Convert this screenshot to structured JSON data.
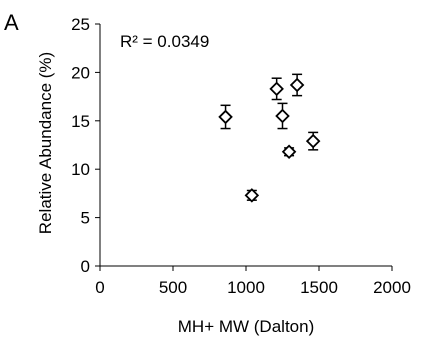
{
  "panel_label": "A",
  "colors": {
    "mark": "#000000",
    "background": "#ffffff"
  },
  "chart_data": {
    "type": "scatter",
    "title": "",
    "xlabel": "MH+ MW (Dalton)",
    "ylabel": "Relative Abundance (%)",
    "xlim": [
      0,
      2000
    ],
    "ylim": [
      0,
      25
    ],
    "xticks": [
      0,
      500,
      1000,
      1500,
      2000
    ],
    "yticks": [
      0,
      5,
      10,
      15,
      20,
      25
    ],
    "grid": false,
    "legend": "none",
    "marker": "diamond-open",
    "error_bars": true,
    "annotation": "R² = 0.0349",
    "points": [
      {
        "x": 860,
        "y": 15.4,
        "err": 1.2
      },
      {
        "x": 1040,
        "y": 7.3,
        "err": 0.5
      },
      {
        "x": 1210,
        "y": 18.3,
        "err": 1.1
      },
      {
        "x": 1250,
        "y": 15.5,
        "err": 1.3
      },
      {
        "x": 1295,
        "y": 11.8,
        "err": 0.4
      },
      {
        "x": 1350,
        "y": 18.7,
        "err": 1.1
      },
      {
        "x": 1460,
        "y": 12.9,
        "err": 0.9
      }
    ]
  }
}
